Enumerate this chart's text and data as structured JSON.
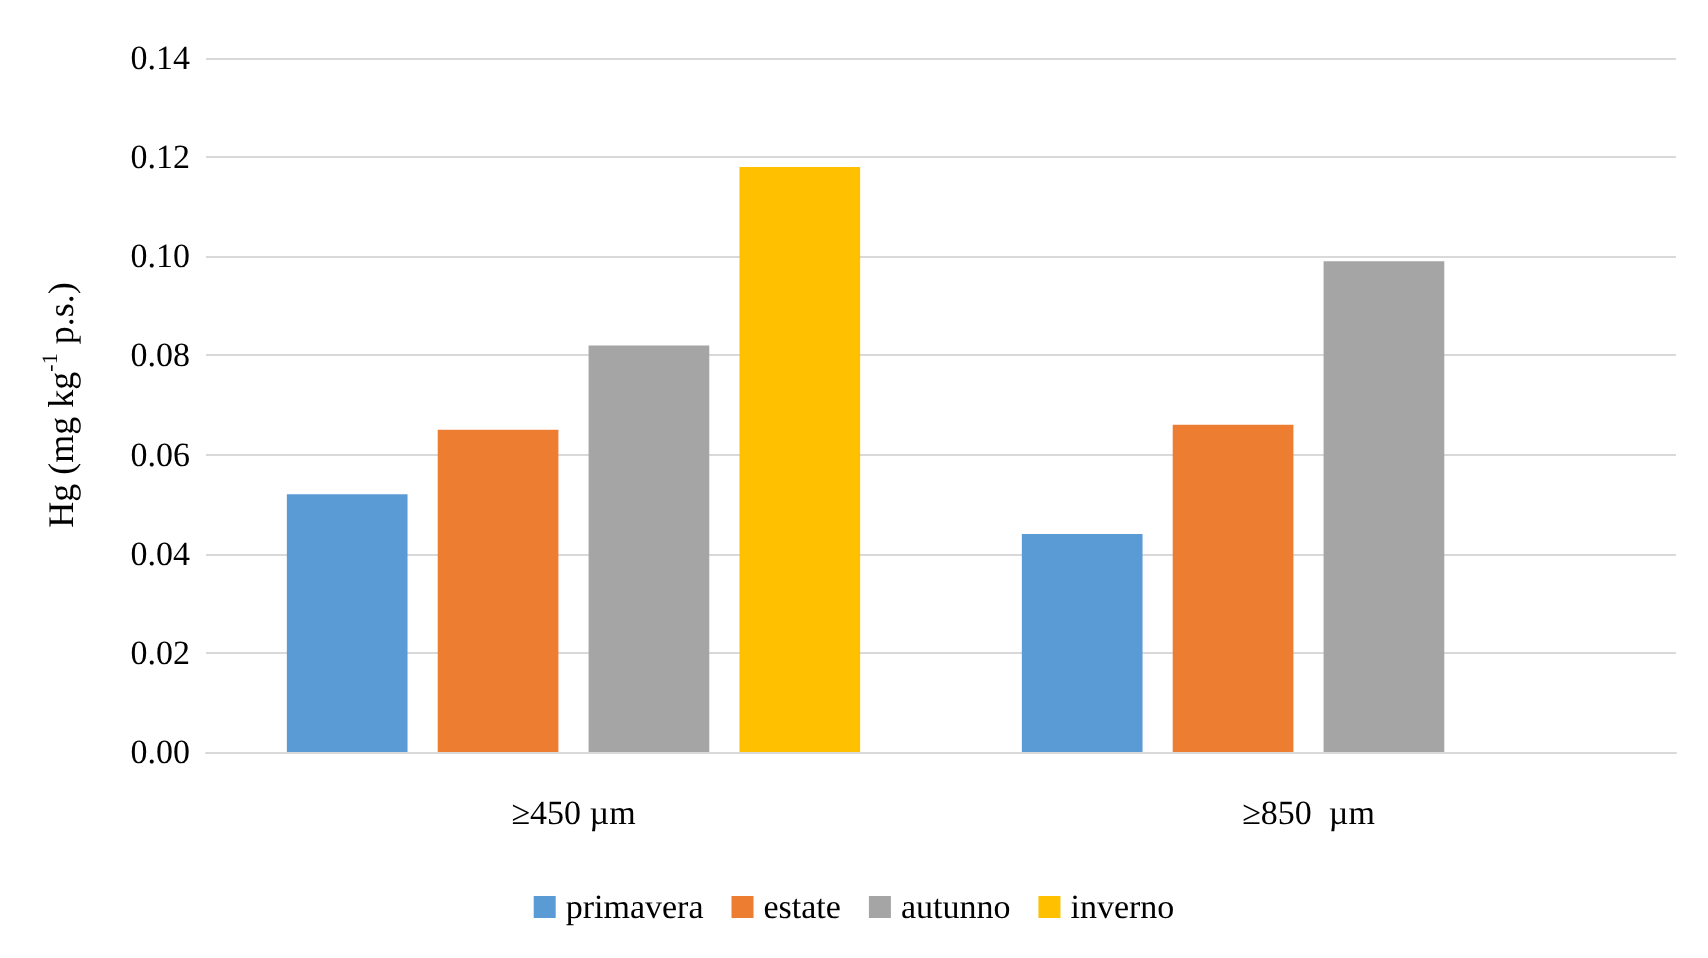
{
  "chart_data": {
    "type": "bar",
    "ylabel": "Hg (mg kg$^{-1}$ p.s.)",
    "categories": [
      "≥450 µm",
      "≥850  µm"
    ],
    "series": [
      {
        "name": "primavera",
        "color": "#5b9bd5",
        "values": [
          0.052,
          0.044
        ]
      },
      {
        "name": "estate",
        "color": "#ed7d31",
        "values": [
          0.065,
          0.066
        ]
      },
      {
        "name": "autunno",
        "color": "#a5a5a5",
        "values": [
          0.082,
          0.099
        ]
      },
      {
        "name": "inverno",
        "color": "#ffc000",
        "values": [
          0.118,
          null
        ]
      }
    ],
    "ylim": [
      0,
      0.14
    ],
    "yticks": [
      {
        "value": 0,
        "label": "0.00"
      },
      {
        "value": 0.02,
        "label": "0.02"
      },
      {
        "value": 0.04,
        "label": "0.04"
      },
      {
        "value": 0.06,
        "label": "0.06"
      },
      {
        "value": 0.08,
        "label": "0.08"
      },
      {
        "value": 0.1,
        "label": "0.10"
      },
      {
        "value": 0.12,
        "label": "0.12"
      },
      {
        "value": 0.14,
        "label": "0.14"
      }
    ],
    "grid": "y",
    "legend": "bottom"
  }
}
